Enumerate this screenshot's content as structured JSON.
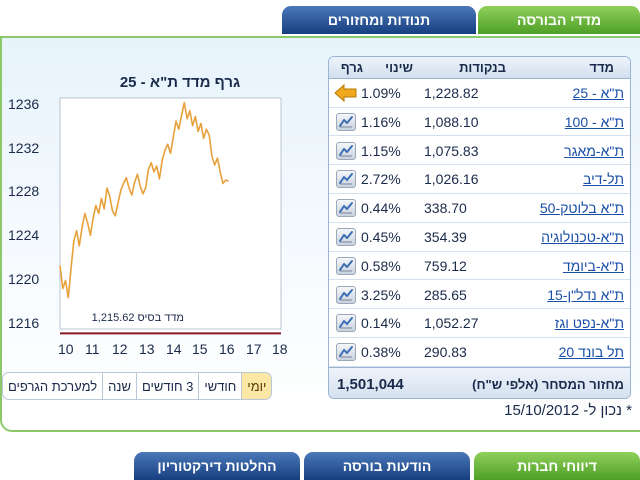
{
  "top_tabs": [
    {
      "label": "מדדי הבורסה",
      "active": true
    },
    {
      "label": "תנודות ומחזורים",
      "active": false
    }
  ],
  "table": {
    "headers": {
      "index": "מדד",
      "points": "בנקודות",
      "change": "שינוי",
      "graph": "גרף"
    },
    "rows": [
      {
        "name": "ת\"א - 25",
        "points": "1,228.82",
        "change": "1.09%",
        "icon": "arrow-left-icon"
      },
      {
        "name": "ת\"א - 100",
        "points": "1,088.10",
        "change": "1.16%",
        "icon": "graph-icon"
      },
      {
        "name": "ת\"א-מאגר",
        "points": "1,075.83",
        "change": "1.15%",
        "icon": "graph-icon"
      },
      {
        "name": "תל-דיב",
        "points": "1,026.16",
        "change": "2.72%",
        "icon": "graph-icon"
      },
      {
        "name": "ת\"א בלוטק-50",
        "points": "338.70",
        "change": "0.44%",
        "icon": "graph-icon"
      },
      {
        "name": "ת\"א-טכנולוגיה",
        "points": "354.39",
        "change": "0.45%",
        "icon": "graph-icon"
      },
      {
        "name": "ת\"א-ביומד",
        "points": "759.12",
        "change": "0.58%",
        "icon": "graph-icon"
      },
      {
        "name": "ת\"א נדל\"ן-15",
        "points": "285.65",
        "change": "3.25%",
        "icon": "graph-icon"
      },
      {
        "name": "ת\"א-נפט וגז",
        "points": "1,052.27",
        "change": "0.14%",
        "icon": "graph-icon"
      },
      {
        "name": "תל בונד 20",
        "points": "290.83",
        "change": "0.38%",
        "icon": "graph-icon"
      }
    ],
    "volume_label": "מחזור המסחר (אלפי ש\"ח)",
    "volume_value": "1,501,044"
  },
  "as_of": "* נכון ל- 15/10/2012",
  "chart_data": {
    "type": "line",
    "title": "גרף מדד ת\"א - 25",
    "base_label": "מדד בסיס 1,215.62",
    "base_value": 1215.62,
    "y_ticks": [
      "1236",
      "1232",
      "1228",
      "1224",
      "1220",
      "1216"
    ],
    "x_ticks": [
      "10",
      "11",
      "12",
      "13",
      "14",
      "15",
      "16",
      "17",
      "18"
    ],
    "ylim": [
      1216,
      1236
    ],
    "xlim": [
      10,
      18
    ],
    "line_color": "#e8a13a",
    "x": [
      10.0,
      10.1,
      10.2,
      10.3,
      10.4,
      10.5,
      10.6,
      10.7,
      10.8,
      10.9,
      11.0,
      11.1,
      11.2,
      11.3,
      11.4,
      11.5,
      11.6,
      11.7,
      11.8,
      11.9,
      12.0,
      12.1,
      12.2,
      12.3,
      12.4,
      12.5,
      12.6,
      12.7,
      12.8,
      12.9,
      13.0,
      13.1,
      13.2,
      13.3,
      13.4,
      13.5,
      13.6,
      13.7,
      13.8,
      13.9,
      14.0,
      14.1,
      14.2,
      14.3,
      14.4,
      14.5,
      14.6,
      14.7,
      14.8,
      14.9,
      15.0,
      15.1,
      15.2,
      15.3,
      15.4,
      15.5,
      15.6,
      15.7,
      15.8,
      15.9,
      16.0,
      16.1
    ],
    "values": [
      1221.5,
      1219.5,
      1220.2,
      1218.7,
      1221.3,
      1223.6,
      1224.5,
      1223.2,
      1224.8,
      1226.0,
      1225.2,
      1224.1,
      1225.6,
      1226.7,
      1226.0,
      1227.3,
      1226.4,
      1228.2,
      1227.5,
      1226.2,
      1225.8,
      1226.9,
      1228.0,
      1228.6,
      1229.1,
      1228.2,
      1227.6,
      1228.7,
      1229.4,
      1228.4,
      1227.7,
      1228.2,
      1229.8,
      1230.4,
      1229.6,
      1230.1,
      1229.0,
      1230.6,
      1231.5,
      1232.0,
      1231.2,
      1232.6,
      1234.0,
      1233.3,
      1234.5,
      1235.6,
      1234.2,
      1234.9,
      1233.6,
      1234.4,
      1233.1,
      1233.8,
      1232.5,
      1233.3,
      1232.8,
      1231.0,
      1230.2,
      1230.8,
      1229.6,
      1228.6,
      1228.9,
      1228.8
    ]
  },
  "period_buttons": [
    {
      "label": "יומי",
      "active": true
    },
    {
      "label": "חודשי",
      "active": false
    },
    {
      "label": "3 חודשים",
      "active": false
    },
    {
      "label": "שנה",
      "active": false
    },
    {
      "label": "למערכת הגרפים",
      "active": false
    }
  ],
  "bottom_tabs": [
    {
      "label": "דיווחי חברות"
    },
    {
      "label": "הודעות בורסה"
    },
    {
      "label": "החלטות דירקטוריון"
    }
  ]
}
